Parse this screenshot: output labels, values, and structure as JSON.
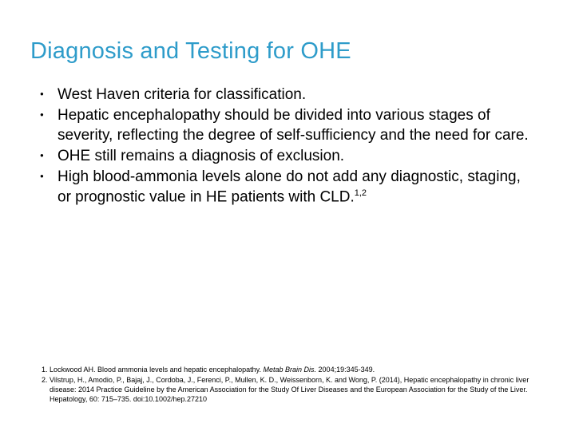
{
  "title": "Diagnosis and Testing for OHE",
  "title_color": "#2e9cca",
  "title_fontsize": 29,
  "body_color": "#000000",
  "body_fontsize": 19,
  "background_color": "#ffffff",
  "bullets": [
    {
      "text": "West Haven criteria for classification."
    },
    {
      "text": "Hepatic encephalopathy should be divided into various stages of severity, reflecting the degree of self-sufficiency and the need for care."
    },
    {
      "text": "OHE still remains a diagnosis of exclusion."
    },
    {
      "text": "High blood-ammonia levels alone do not add any diagnostic, staging, or prognostic value in HE patients with CLD.",
      "sup": "1,2"
    }
  ],
  "references": [
    {
      "pre": "Lockwood AH. Blood ammonia levels and hepatic encephalopathy. ",
      "ital": "Metab Brain Dis.",
      "post": " 2004;19:345-349."
    },
    {
      "pre": "Vilstrup, H., Amodio, P., Bajaj, J., Cordoba, J., Ferenci, P., Mullen, K. D., Weissenborn, K. and Wong, P. (2014), Hepatic encephalopathy in chronic liver disease: 2014 Practice Guideline by the American Association for the Study Of Liver Diseases and the European Association for the Study of the Liver. Hepatology, 60: 715–735. doi:10.1002/hep.27210",
      "ital": "",
      "post": ""
    }
  ],
  "ref_fontsize": 9
}
